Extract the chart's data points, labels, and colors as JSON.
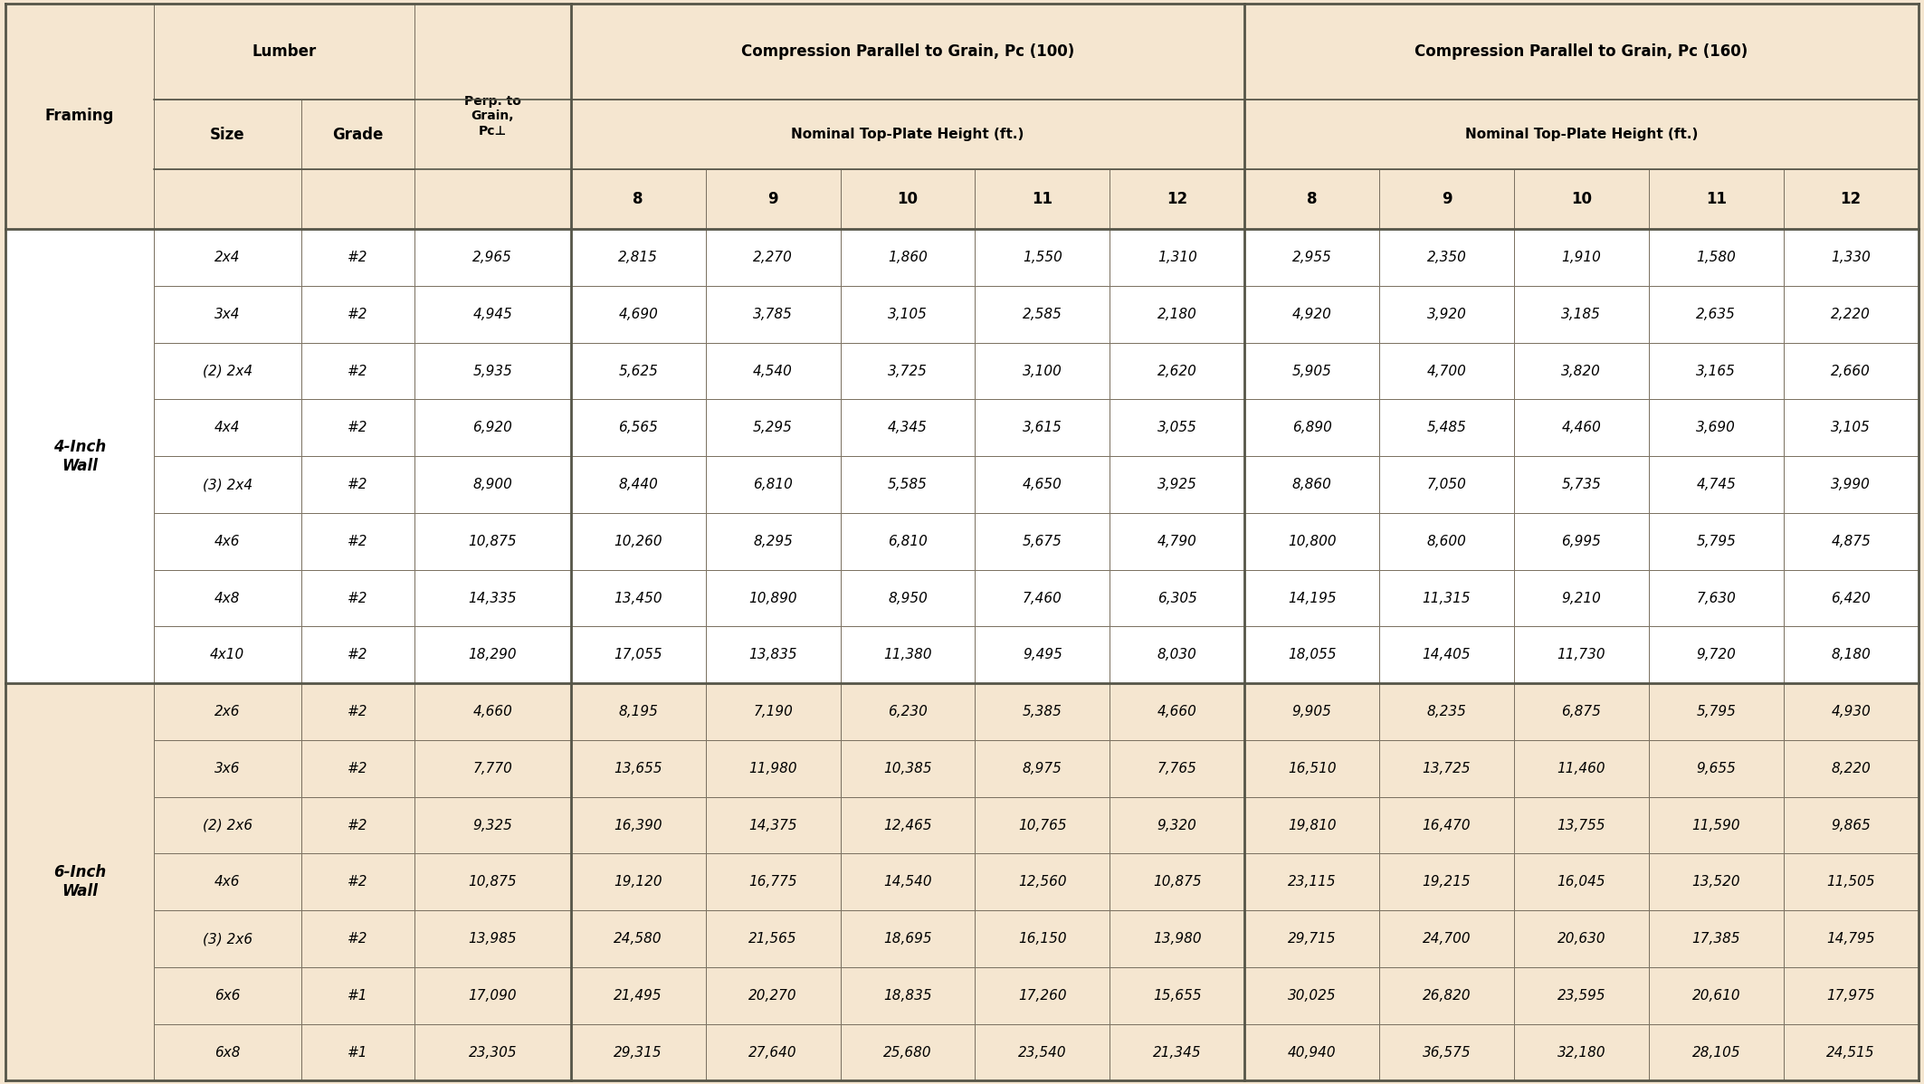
{
  "tan_bg": "#f5e6d0",
  "white_bg": "#ffffff",
  "rows": [
    [
      "4-Inch\nWall",
      "2x4",
      "#2",
      "2,965",
      "2,815",
      "2,270",
      "1,860",
      "1,550",
      "1,310",
      "2,955",
      "2,350",
      "1,910",
      "1,580",
      "1,330"
    ],
    [
      "",
      "3x4",
      "#2",
      "4,945",
      "4,690",
      "3,785",
      "3,105",
      "2,585",
      "2,180",
      "4,920",
      "3,920",
      "3,185",
      "2,635",
      "2,220"
    ],
    [
      "",
      "(2) 2x4",
      "#2",
      "5,935",
      "5,625",
      "4,540",
      "3,725",
      "3,100",
      "2,620",
      "5,905",
      "4,700",
      "3,820",
      "3,165",
      "2,660"
    ],
    [
      "",
      "4x4",
      "#2",
      "6,920",
      "6,565",
      "5,295",
      "4,345",
      "3,615",
      "3,055",
      "6,890",
      "5,485",
      "4,460",
      "3,690",
      "3,105"
    ],
    [
      "",
      "(3) 2x4",
      "#2",
      "8,900",
      "8,440",
      "6,810",
      "5,585",
      "4,650",
      "3,925",
      "8,860",
      "7,050",
      "5,735",
      "4,745",
      "3,990"
    ],
    [
      "",
      "4x6",
      "#2",
      "10,875",
      "10,260",
      "8,295",
      "6,810",
      "5,675",
      "4,790",
      "10,800",
      "8,600",
      "6,995",
      "5,795",
      "4,875"
    ],
    [
      "",
      "4x8",
      "#2",
      "14,335",
      "13,450",
      "10,890",
      "8,950",
      "7,460",
      "6,305",
      "14,195",
      "11,315",
      "9,210",
      "7,630",
      "6,420"
    ],
    [
      "",
      "4x10",
      "#2",
      "18,290",
      "17,055",
      "13,835",
      "11,380",
      "9,495",
      "8,030",
      "18,055",
      "14,405",
      "11,730",
      "9,720",
      "8,180"
    ],
    [
      "6-Inch\nWall",
      "2x6",
      "#2",
      "4,660",
      "8,195",
      "7,190",
      "6,230",
      "5,385",
      "4,660",
      "9,905",
      "8,235",
      "6,875",
      "5,795",
      "4,930"
    ],
    [
      "",
      "3x6",
      "#2",
      "7,770",
      "13,655",
      "11,980",
      "10,385",
      "8,975",
      "7,765",
      "16,510",
      "13,725",
      "11,460",
      "9,655",
      "8,220"
    ],
    [
      "",
      "(2) 2x6",
      "#2",
      "9,325",
      "16,390",
      "14,375",
      "12,465",
      "10,765",
      "9,320",
      "19,810",
      "16,470",
      "13,755",
      "11,590",
      "9,865"
    ],
    [
      "",
      "4x6",
      "#2",
      "10,875",
      "19,120",
      "16,775",
      "14,540",
      "12,560",
      "10,875",
      "23,115",
      "19,215",
      "16,045",
      "13,520",
      "11,505"
    ],
    [
      "",
      "(3) 2x6",
      "#2",
      "13,985",
      "24,580",
      "21,565",
      "18,695",
      "16,150",
      "13,980",
      "29,715",
      "24,700",
      "20,630",
      "17,385",
      "14,795"
    ],
    [
      "",
      "6x6",
      "#1",
      "17,090",
      "21,495",
      "20,270",
      "18,835",
      "17,260",
      "15,655",
      "30,025",
      "26,820",
      "23,595",
      "20,610",
      "17,975"
    ],
    [
      "",
      "6x8",
      "#1",
      "23,305",
      "29,315",
      "27,640",
      "25,680",
      "23,540",
      "21,345",
      "40,940",
      "36,575",
      "32,180",
      "28,105",
      "24,515"
    ]
  ]
}
